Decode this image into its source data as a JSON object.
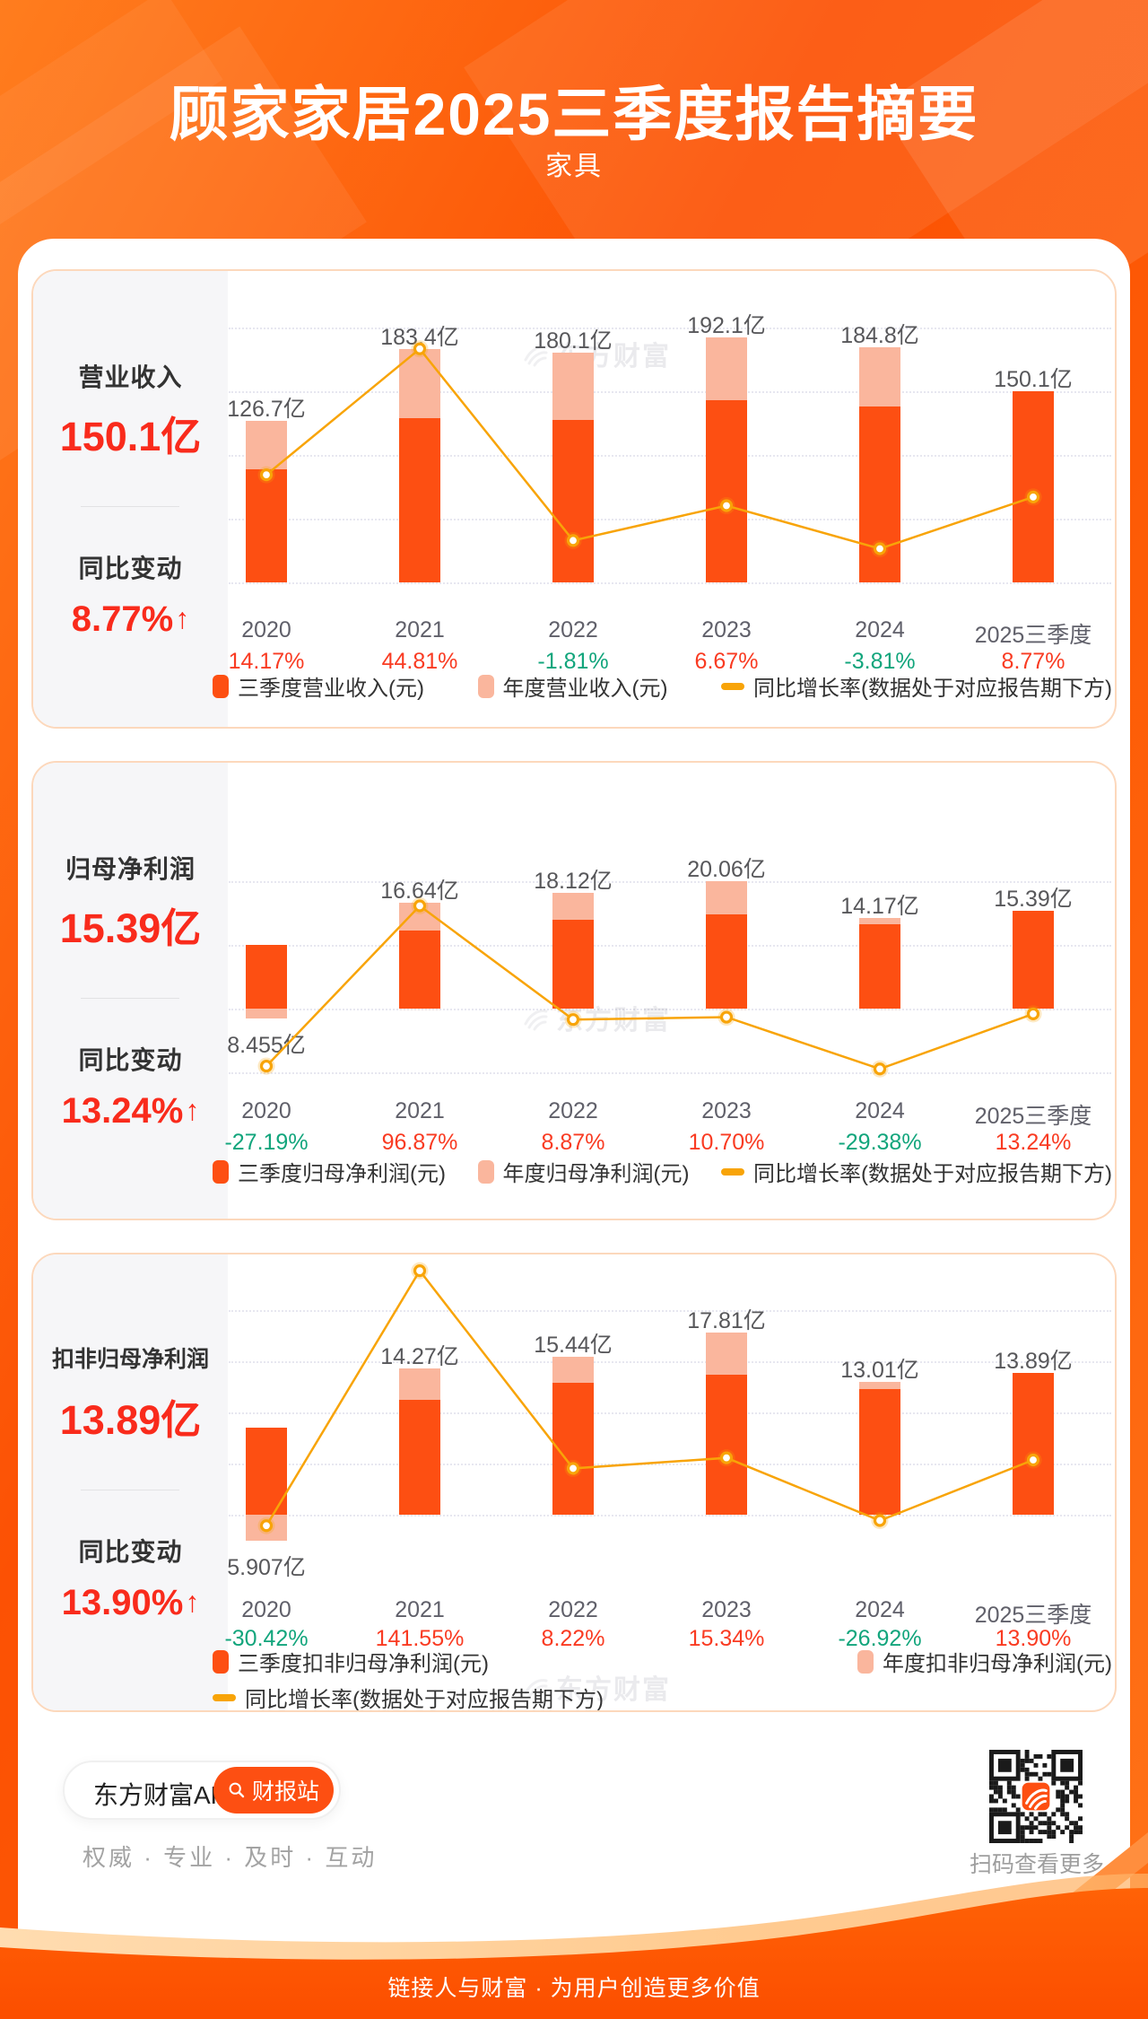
{
  "header": {
    "title": "顾家家居2025三季度报告摘要",
    "subtitle": "家具"
  },
  "colors": {
    "bar_q3": "#fd4f12",
    "bar_annual": "#fab69d",
    "line": "#f8a408",
    "positive": "#f93b22",
    "negative": "#12a57c",
    "highlight": "#f92b1c"
  },
  "watermark": {
    "text": "东方财富"
  },
  "panels": [
    {
      "id": "revenue",
      "sidebar": {
        "title": "营业收入",
        "value": "150.1亿",
        "change_label": "同比变动",
        "change_value": "8.77%",
        "change_arrow": "↑"
      },
      "chart_data": {
        "type": "bar+line",
        "categories": [
          "2020",
          "2021",
          "2022",
          "2023",
          "2024",
          "2025三季度"
        ],
        "series": [
          {
            "name": "三季度营业收入(元)",
            "unit": "亿元",
            "values": [
              88.9,
              128.9,
              127.7,
              142.8,
              138.0,
              150.1
            ]
          },
          {
            "name": "年度营业收入(元)",
            "unit": "亿元",
            "values": [
              126.7,
              183.4,
              180.1,
              192.1,
              184.8,
              null
            ]
          },
          {
            "name": "同比增长率(数据处于对应报告期下方)",
            "unit": "%",
            "values": [
              14.17,
              44.81,
              -1.81,
              6.67,
              -3.81,
              8.77
            ]
          }
        ],
        "bar_labels": [
          "126.7亿",
          "183.4亿",
          "180.1亿",
          "192.1亿",
          "184.8亿",
          "150.1亿"
        ],
        "yoy_labels": [
          "14.17%",
          "44.81%",
          "-1.81%",
          "6.67%",
          "-3.81%",
          "8.77%"
        ],
        "bar_axis": {
          "min": 0,
          "max": 200,
          "grid_step": 50
        },
        "line_axis": {
          "min": -12,
          "max": 50
        },
        "grid": "dotted horizontal"
      }
    },
    {
      "id": "net-profit",
      "sidebar": {
        "title": "归母净利润",
        "value": "15.39亿",
        "change_label": "同比变动",
        "change_value": "13.24%",
        "change_arrow": "↑"
      },
      "chart_data": {
        "type": "bar+line",
        "categories": [
          "2020",
          "2021",
          "2022",
          "2023",
          "2024",
          "2025三季度"
        ],
        "series": [
          {
            "name": "三季度归母净利润(元)",
            "unit": "亿元",
            "values": [
              10.03,
              12.28,
              13.98,
              14.83,
              13.27,
              15.39
            ]
          },
          {
            "name": "年度归母净利润(元)",
            "unit": "亿元",
            "values": [
              8.455,
              16.64,
              18.12,
              20.06,
              14.17,
              null
            ]
          },
          {
            "name": "同比增长率(数据处于对应报告期下方)",
            "unit": "%",
            "values": [
              -27.19,
              96.87,
              8.87,
              10.7,
              -29.38,
              13.24
            ]
          }
        ],
        "bar_labels": [
          "8.455亿",
          "16.64亿",
          "18.12亿",
          "20.06亿",
          "14.17亿",
          "15.39亿"
        ],
        "yoy_labels": [
          "-27.19%",
          "96.87%",
          "8.87%",
          "10.70%",
          "-29.38%",
          "13.24%"
        ],
        "bar_axis": {
          "min": -10,
          "max": 20,
          "grid_step": 10
        },
        "line_axis": {
          "min": -32,
          "max": 116
        },
        "grid": "dotted horizontal"
      }
    },
    {
      "id": "non-gaap-profit",
      "sidebar": {
        "title": "扣非归母净利润",
        "value": "13.89亿",
        "change_label": "同比变动",
        "change_value": "13.90%",
        "change_arrow": "↑"
      },
      "chart_data": {
        "type": "bar+line",
        "categories": [
          "2020",
          "2021",
          "2022",
          "2023",
          "2024",
          "2025三季度"
        ],
        "series": [
          {
            "name": "三季度扣非归母净利润(元)",
            "unit": "亿元",
            "values": [
              8.49,
              11.2,
              12.87,
              13.7,
              12.26,
              13.89
            ]
          },
          {
            "name": "年度扣非归母净利润(元)",
            "unit": "亿元",
            "values": [
              5.907,
              14.27,
              15.44,
              17.81,
              13.01,
              null
            ]
          },
          {
            "name": "同比增长率(数据处于对应报告期下方)",
            "unit": "%",
            "values": [
              -30.42,
              141.55,
              8.22,
              15.34,
              -26.92,
              13.9
            ]
          }
        ],
        "bar_labels": [
          "5.907亿",
          "14.27亿",
          "15.44亿",
          "17.81亿",
          "13.01亿",
          "13.89亿"
        ],
        "yoy_labels": [
          "-30.42%",
          "141.55%",
          "8.22%",
          "15.34%",
          "-26.92%",
          "13.90%"
        ],
        "bar_axis": {
          "min": 0,
          "max": 20,
          "grid_step": 5
        },
        "line_axis": {
          "min": -23,
          "max": 115
        },
        "grid": "dotted horizontal"
      }
    }
  ],
  "promo": {
    "app_name": "东方财富APP",
    "button_label": "财报站",
    "tagline": "权威 · 专业 · 及时 · 互动",
    "qr_caption": "扫码查看更多"
  },
  "footer": {
    "slogan": "链接人与财富 · 为用户创造更多价值"
  }
}
